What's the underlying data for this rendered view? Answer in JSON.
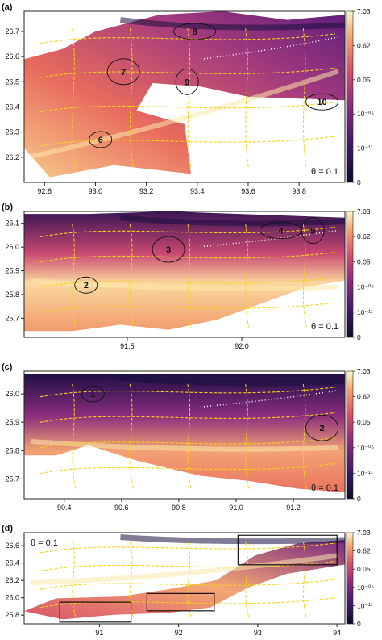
{
  "colors": {
    "map_dark": "#1a0f3e",
    "map_mid": "#c43c6c",
    "map_bright": "#fbe8a8",
    "road": "#f5d21a",
    "outline": "#111111",
    "frame": "#222222",
    "river_dots": "#ffffff"
  },
  "chart_data": [
    {
      "type": "heatmap",
      "panel_label": "(a)",
      "annotation": "θ = 0.1",
      "xlim": [
        92.72,
        93.98
      ],
      "ylim": [
        26.1,
        26.78
      ],
      "x_ticks": [
        "92.8",
        "93.0",
        "93.2",
        "93.4",
        "93.6",
        "93.8"
      ],
      "y_ticks": [
        "26.2",
        "26.3",
        "26.4",
        "26.5",
        "26.6",
        "26.7"
      ],
      "colorbar_labels": [
        "7.03",
        "0.62",
        "0.05",
        "10⁻⁰⁵",
        "10⁻¹¹",
        "0"
      ],
      "polygon_labels": [
        {
          "label": "6",
          "x": 93.02,
          "y": 26.27
        },
        {
          "label": "7",
          "x": 93.11,
          "y": 26.54
        },
        {
          "label": "8",
          "x": 93.39,
          "y": 26.7
        },
        {
          "label": "9",
          "x": 93.36,
          "y": 26.5
        },
        {
          "label": "10",
          "x": 93.89,
          "y": 26.42
        }
      ]
    },
    {
      "type": "heatmap",
      "panel_label": "(b)",
      "annotation": "θ = 0.1",
      "xlim": [
        91.05,
        92.45
      ],
      "ylim": [
        25.62,
        26.15
      ],
      "x_ticks": [
        "91.5",
        "92.0"
      ],
      "y_ticks": [
        "25.7",
        "25.8",
        "25.9",
        "26.0",
        "26.1"
      ],
      "colorbar_labels": [
        "7.03",
        "0.62",
        "0.05",
        "10⁻⁰⁵",
        "10⁻¹¹",
        "0"
      ],
      "polygon_labels": [
        {
          "label": "2",
          "x": 91.32,
          "y": 25.84
        },
        {
          "label": "3",
          "x": 91.68,
          "y": 25.99
        },
        {
          "label": "4",
          "x": 92.17,
          "y": 26.07
        },
        {
          "label": "5",
          "x": 92.31,
          "y": 26.07
        }
      ]
    },
    {
      "type": "heatmap",
      "panel_label": "(c)",
      "annotation": "θ = 0.1",
      "xlim": [
        90.26,
        91.38
      ],
      "ylim": [
        25.63,
        26.08
      ],
      "x_ticks": [
        "90.4",
        "90.6",
        "90.8",
        "91.0",
        "91.2"
      ],
      "y_ticks": [
        "25.7",
        "25.8",
        "25.9",
        "26.0"
      ],
      "colorbar_labels": [
        "7.03",
        "0.62",
        "0.05",
        "10⁻⁰⁵",
        "10⁻¹¹",
        "0"
      ],
      "polygon_labels": [
        {
          "label": "1",
          "x": 90.5,
          "y": 26.0
        },
        {
          "label": "2",
          "x": 91.3,
          "y": 25.88
        }
      ]
    },
    {
      "type": "heatmap",
      "panel_label": "(d)",
      "annotation": "θ = 0.1",
      "xlim": [
        90.05,
        94.1
      ],
      "ylim": [
        25.7,
        26.75
      ],
      "x_ticks": [
        "91",
        "92",
        "93",
        "94"
      ],
      "y_ticks": [
        "25.8",
        "26.0",
        "26.2",
        "26.4",
        "26.6"
      ],
      "colorbar_labels": [
        "7.03",
        "0.62",
        "0.05",
        "10⁻⁰⁵",
        "10⁻¹¹",
        "0"
      ],
      "boxes": [
        {
          "x0": 90.5,
          "x1": 91.4,
          "y0": 25.72,
          "y1": 25.95
        },
        {
          "x0": 91.6,
          "x1": 92.45,
          "y0": 25.85,
          "y1": 26.05
        },
        {
          "x0": 92.75,
          "x1": 94.0,
          "y0": 26.38,
          "y1": 26.72
        }
      ]
    }
  ]
}
